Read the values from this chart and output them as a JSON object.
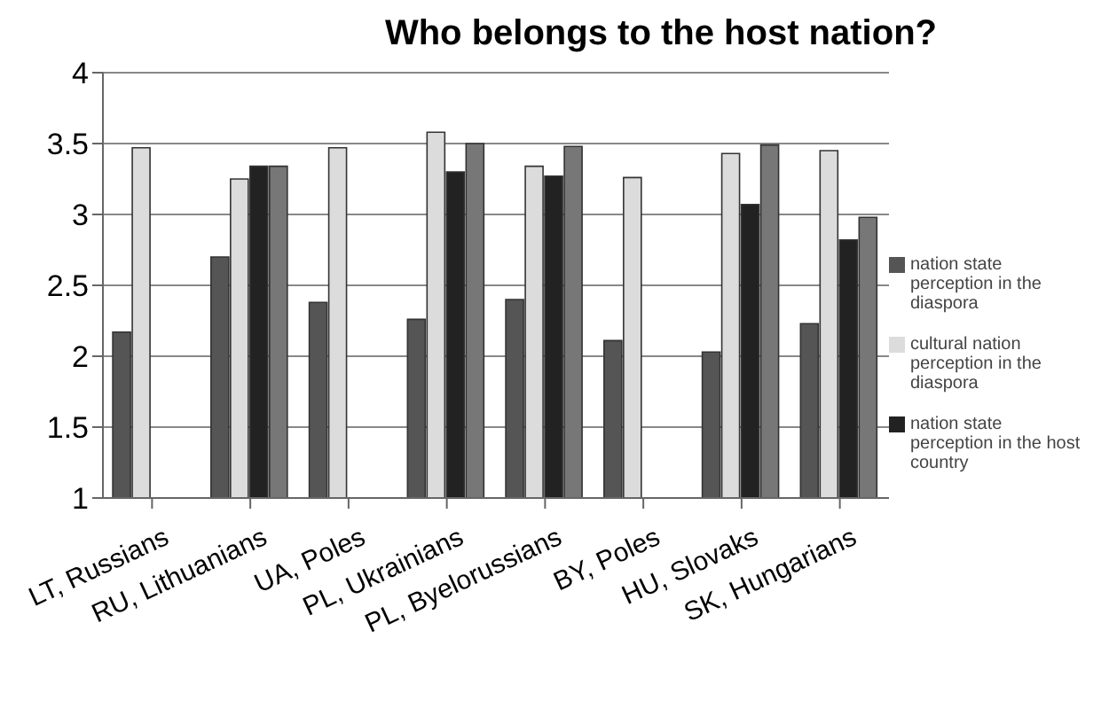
{
  "chart_data": {
    "type": "bar",
    "title": "Who belongs to the host nation?",
    "categories": [
      "LT, Russians",
      "RU, Lithuanians",
      "UA, Poles",
      "PL, Ukrainians",
      "PL, Byelorussians",
      "BY, Poles",
      "HU, Slovaks",
      "SK, Hungarians"
    ],
    "series": [
      {
        "name": "nation state perception in the diaspora",
        "color": "#555555",
        "values": [
          2.17,
          2.7,
          2.38,
          2.26,
          2.4,
          2.11,
          2.03,
          2.23
        ]
      },
      {
        "name": "cultural nation perception in the diaspora",
        "color": "#dcdcdc",
        "values": [
          3.47,
          3.25,
          3.47,
          3.58,
          3.34,
          3.26,
          3.43,
          3.45
        ]
      },
      {
        "name": "nation state perception in the host country",
        "color": "#222222",
        "values": [
          null,
          3.34,
          null,
          3.3,
          3.27,
          null,
          3.07,
          2.82
        ]
      },
      {
        "color": "#777777",
        "values": [
          null,
          3.34,
          null,
          3.5,
          3.48,
          null,
          3.49,
          2.98
        ]
      }
    ],
    "ylim": [
      1,
      4
    ],
    "yticks": [
      1,
      1.5,
      2,
      2.5,
      3,
      3.5,
      4
    ],
    "grid": "y",
    "legend": "right"
  }
}
